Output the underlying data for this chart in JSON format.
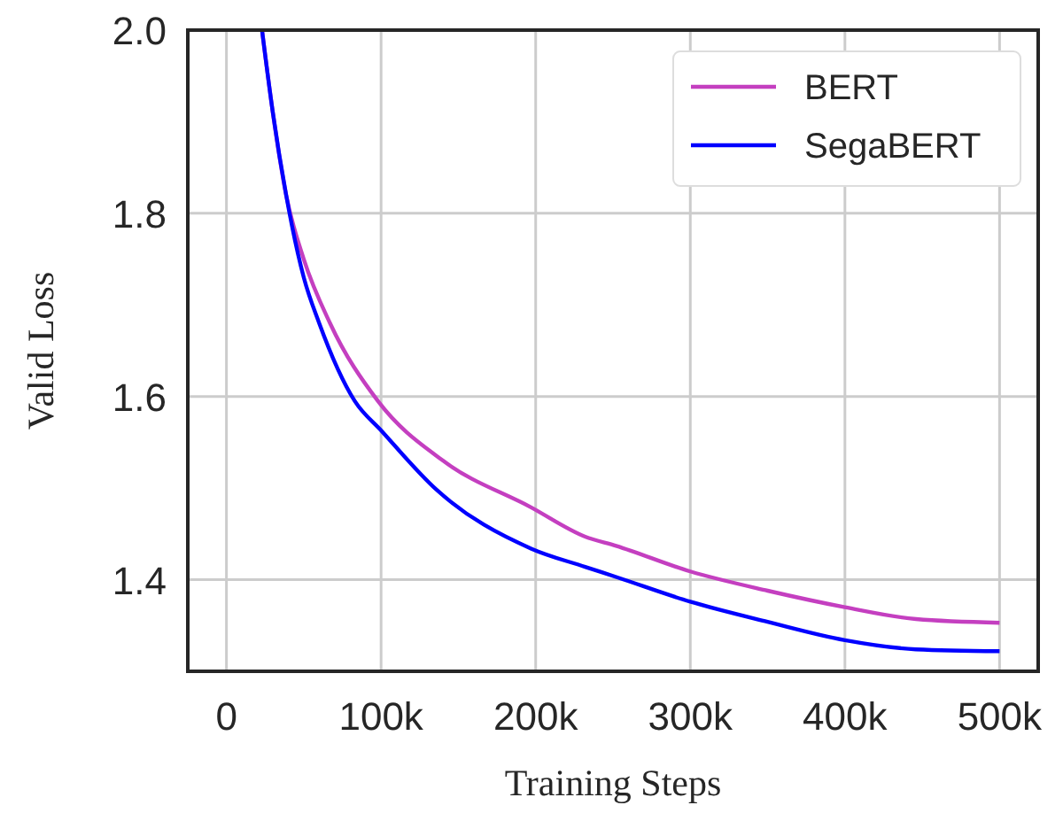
{
  "chart_data": {
    "type": "line",
    "xlabel": "Training Steps",
    "ylabel": "Valid Loss",
    "xlim": [
      -25000,
      525000
    ],
    "ylim": [
      1.3,
      2.0
    ],
    "xticks": [
      0,
      {
        "value": 100000,
        "label": "100k"
      },
      {
        "value": 200000,
        "label": "200k"
      },
      {
        "value": 300000,
        "label": "300k"
      },
      {
        "value": 400000,
        "label": "400k"
      },
      {
        "value": 500000,
        "label": "500k"
      }
    ],
    "yticks": [
      1.4,
      1.6,
      1.8,
      {
        "value": 2.0,
        "label": "2.0"
      }
    ],
    "grid": true,
    "legend": "top right",
    "line_style": "solid",
    "marker": "none",
    "series": [
      {
        "name": "BERT",
        "color": "#c43fc0",
        "x": [
          23000,
          30000,
          38600,
          50000,
          67000,
          98000,
          140000,
          197000,
          232000,
          252000,
          300000,
          350000,
          400000,
          446000,
          500000
        ],
        "values": [
          2.0,
          1.91,
          1.82,
          1.75,
          1.68,
          1.595,
          1.53,
          1.479,
          1.447,
          1.437,
          1.409,
          1.388,
          1.37,
          1.357,
          1.353
        ]
      },
      {
        "name": "SegaBERT",
        "color": "#0000ff",
        "x": [
          23000,
          30000,
          38600,
          50000,
          60000,
          83000,
          100000,
          136000,
          197000,
          232000,
          252000,
          300000,
          350000,
          400000,
          446000,
          500000
        ],
        "values": [
          2.0,
          1.91,
          1.82,
          1.73,
          1.68,
          1.595,
          1.563,
          1.498,
          1.434,
          1.414,
          1.403,
          1.376,
          1.354,
          1.334,
          1.324,
          1.322
        ]
      }
    ]
  }
}
